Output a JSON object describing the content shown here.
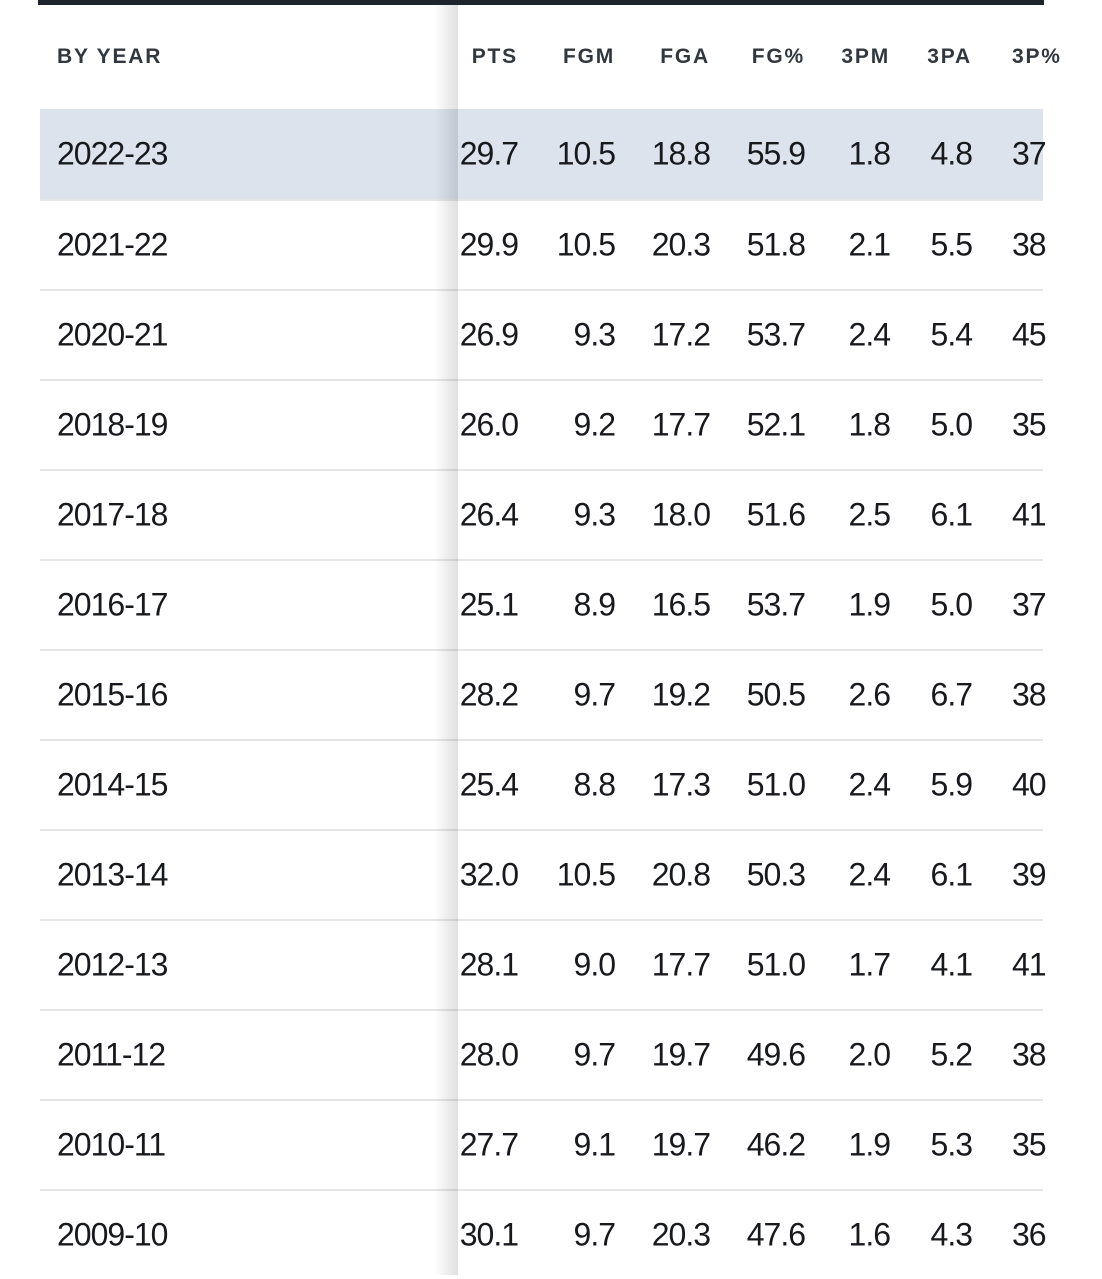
{
  "page": {
    "topbar_color": "#1d242c",
    "highlight_color": "#dce3ed",
    "text_color": "#17191d",
    "header_text_color": "#31373e"
  },
  "table": {
    "first_column_header": "BY YEAR",
    "columns": [
      "PTS",
      "FGM",
      "FGA",
      "FG%",
      "3PM",
      "3PA",
      "3P%"
    ],
    "rows": [
      {
        "year": "2022-23",
        "highlighted": true,
        "values": [
          "29.7",
          "10.5",
          "18.8",
          "55.9",
          "1.8",
          "4.8",
          "37"
        ]
      },
      {
        "year": "2021-22",
        "highlighted": false,
        "values": [
          "29.9",
          "10.5",
          "20.3",
          "51.8",
          "2.1",
          "5.5",
          "38"
        ]
      },
      {
        "year": "2020-21",
        "highlighted": false,
        "values": [
          "26.9",
          "9.3",
          "17.2",
          "53.7",
          "2.4",
          "5.4",
          "45"
        ]
      },
      {
        "year": "2018-19",
        "highlighted": false,
        "values": [
          "26.0",
          "9.2",
          "17.7",
          "52.1",
          "1.8",
          "5.0",
          "35"
        ]
      },
      {
        "year": "2017-18",
        "highlighted": false,
        "values": [
          "26.4",
          "9.3",
          "18.0",
          "51.6",
          "2.5",
          "6.1",
          "41"
        ]
      },
      {
        "year": "2016-17",
        "highlighted": false,
        "values": [
          "25.1",
          "8.9",
          "16.5",
          "53.7",
          "1.9",
          "5.0",
          "37"
        ]
      },
      {
        "year": "2015-16",
        "highlighted": false,
        "values": [
          "28.2",
          "9.7",
          "19.2",
          "50.5",
          "2.6",
          "6.7",
          "38"
        ]
      },
      {
        "year": "2014-15",
        "highlighted": false,
        "values": [
          "25.4",
          "8.8",
          "17.3",
          "51.0",
          "2.4",
          "5.9",
          "40"
        ]
      },
      {
        "year": "2013-14",
        "highlighted": false,
        "values": [
          "32.0",
          "10.5",
          "20.8",
          "50.3",
          "2.4",
          "6.1",
          "39"
        ]
      },
      {
        "year": "2012-13",
        "highlighted": false,
        "values": [
          "28.1",
          "9.0",
          "17.7",
          "51.0",
          "1.7",
          "4.1",
          "41"
        ]
      },
      {
        "year": "2011-12",
        "highlighted": false,
        "values": [
          "28.0",
          "9.7",
          "19.7",
          "49.6",
          "2.0",
          "5.2",
          "38"
        ]
      },
      {
        "year": "2010-11",
        "highlighted": false,
        "values": [
          "27.7",
          "9.1",
          "19.7",
          "46.2",
          "1.9",
          "5.3",
          "35"
        ]
      },
      {
        "year": "2009-10",
        "highlighted": false,
        "values": [
          "30.1",
          "9.7",
          "20.3",
          "47.6",
          "1.6",
          "4.3",
          "36"
        ]
      }
    ]
  }
}
